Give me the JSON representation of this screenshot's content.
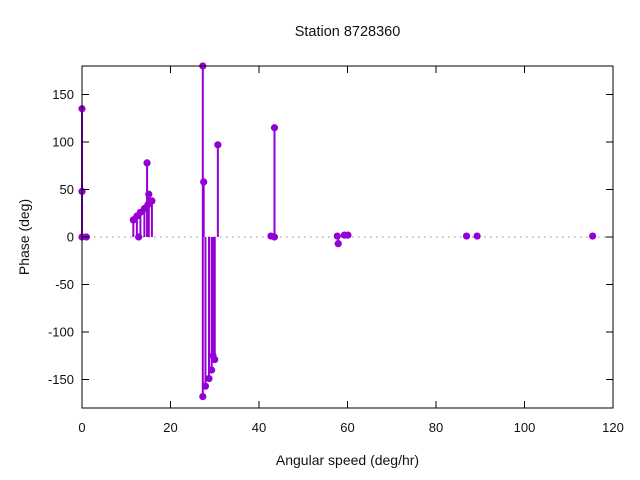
{
  "title": "Station 8728360",
  "axes": {
    "xlabel": "Angular speed (deg/hr)",
    "ylabel": "Phase (deg)"
  },
  "colors": {
    "marker": "#9400d3",
    "zero_line": "#8a8a8a",
    "frame": "#000000"
  },
  "chart_data": {
    "type": "scatter",
    "style": "impulses-and-points (stem plot)",
    "title": "Station 8728360",
    "xlabel": "Angular speed (deg/hr)",
    "ylabel": "Phase (deg)",
    "xlim": [
      0,
      120
    ],
    "ylim": [
      -180,
      180
    ],
    "xticks": [
      0,
      20,
      40,
      60,
      80,
      100,
      120
    ],
    "yticks": [
      -150,
      -100,
      -50,
      0,
      50,
      100,
      150
    ],
    "grid": false,
    "legend": "none",
    "zero_axis": "dotted",
    "marker_color": "#9400d3",
    "points": [
      [
        0,
        135
      ],
      [
        0,
        48
      ],
      [
        0,
        0
      ],
      [
        1,
        0
      ],
      [
        11.6,
        18
      ],
      [
        12.4,
        22
      ],
      [
        12.8,
        0
      ],
      [
        13.2,
        26
      ],
      [
        14.1,
        30
      ],
      [
        14.7,
        78
      ],
      [
        14.9,
        34
      ],
      [
        15.1,
        45
      ],
      [
        15.8,
        38
      ],
      [
        27.3,
        180
      ],
      [
        27.5,
        58
      ],
      [
        27.3,
        -168
      ],
      [
        27.9,
        -157
      ],
      [
        28.7,
        -149
      ],
      [
        29.3,
        -140
      ],
      [
        29.6,
        -125
      ],
      [
        30.0,
        -129
      ],
      [
        30.7,
        97
      ],
      [
        42.7,
        1
      ],
      [
        43.5,
        115
      ],
      [
        43.5,
        0
      ],
      [
        57.7,
        1
      ],
      [
        57.9,
        -7
      ],
      [
        59.3,
        2
      ],
      [
        60.1,
        2
      ],
      [
        86.9,
        1
      ],
      [
        89.3,
        1
      ],
      [
        115.4,
        1
      ]
    ]
  }
}
